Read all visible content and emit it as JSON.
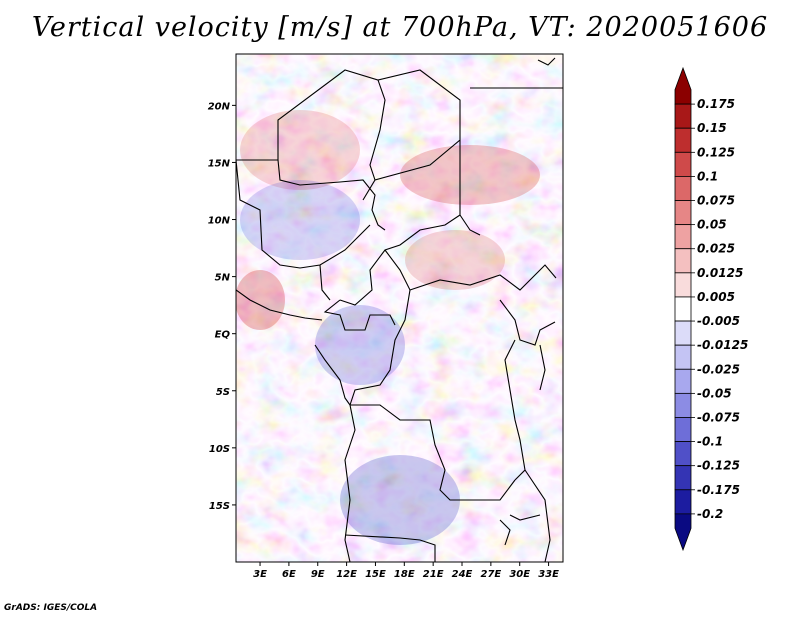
{
  "title": "Vertical velocity [m/s] at 700hPa, VT: 2020051606",
  "credit": "GrADS: IGES/COLA",
  "map": {
    "lat_labels": [
      "20N",
      "15N",
      "10N",
      "5N",
      "EQ",
      "5S",
      "10S",
      "15S"
    ],
    "lat_values": [
      20,
      15,
      10,
      5,
      0,
      -5,
      -10,
      -15
    ],
    "lon_labels": [
      "3E",
      "6E",
      "9E",
      "12E",
      "15E",
      "18E",
      "21E",
      "24E",
      "27E",
      "30E",
      "33E"
    ],
    "lon_values": [
      3,
      6,
      9,
      12,
      15,
      18,
      21,
      24,
      27,
      30,
      33
    ],
    "lon_range": [
      0.5,
      34.5
    ],
    "lat_range": [
      -20,
      24.5
    ]
  },
  "colorbar": {
    "labels": [
      "0.175",
      "0.15",
      "0.125",
      "0.1",
      "0.075",
      "0.05",
      "0.025",
      "0.0125",
      "0.005",
      "-0.005",
      "-0.0125",
      "-0.025",
      "-0.05",
      "-0.075",
      "-0.1",
      "-0.125",
      "-0.175",
      "-0.2"
    ],
    "colors": [
      "#8b0000",
      "#a81818",
      "#be2e2e",
      "#cf4a4a",
      "#dc6868",
      "#e68686",
      "#eea2a2",
      "#f4c0c0",
      "#f9dcdc",
      "#ffffff",
      "#dcdcf9",
      "#c4c4f4",
      "#a8a8ee",
      "#8c8ce4",
      "#6e6ed8",
      "#5050c8",
      "#3434b4",
      "#1c1ca0",
      "#0a0a82"
    ]
  }
}
